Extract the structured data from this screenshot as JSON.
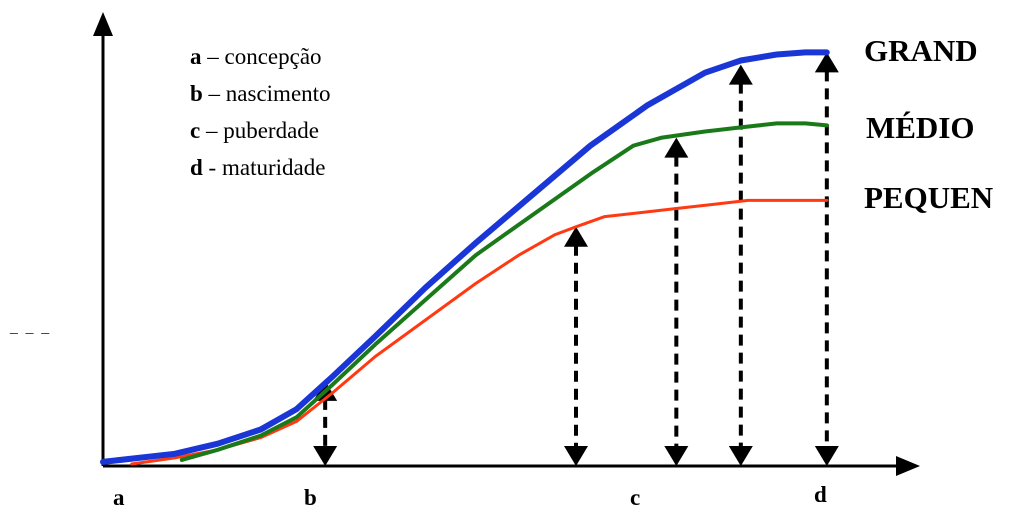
{
  "chart_data": {
    "type": "line",
    "title": "",
    "xlabel": "",
    "ylabel": "",
    "x_ticks": [
      {
        "label": "a",
        "x": 0.05
      },
      {
        "label": "b",
        "x": 3.1
      },
      {
        "label": "c",
        "x": 8.0
      },
      {
        "label": "d",
        "x": 10.0
      }
    ],
    "xlim": [
      0,
      11.4
    ],
    "ylim": [
      0,
      1.1
    ],
    "legend": [
      {
        "key": "a",
        "sep": "–",
        "text": "concepção"
      },
      {
        "key": "b",
        "sep": "–",
        "text": "nascimento"
      },
      {
        "key": "c",
        "sep": "–",
        "text": "puberdade"
      },
      {
        "key": "d",
        "sep": "-",
        "text": "maturidade"
      }
    ],
    "series": [
      {
        "name": "GRAND",
        "color": "#1a36d6",
        "x": [
          0,
          1,
          1.6,
          2.2,
          2.7,
          3.2,
          3.8,
          4.5,
          5.2,
          6.0,
          6.8,
          7.6,
          8.4,
          8.9,
          9.4,
          9.8,
          10.1
        ],
        "y": [
          0.01,
          0.03,
          0.055,
          0.09,
          0.14,
          0.22,
          0.32,
          0.44,
          0.55,
          0.67,
          0.79,
          0.89,
          0.97,
          1.0,
          1.015,
          1.02,
          1.02
        ]
      },
      {
        "name": "MÉDIO",
        "color": "#1a7a1a",
        "x": [
          1.1,
          1.6,
          2.2,
          2.7,
          3.2,
          3.8,
          4.5,
          5.2,
          6.0,
          6.8,
          7.4,
          7.8,
          8.4,
          8.9,
          9.4,
          9.8,
          10.1
        ],
        "y": [
          0.015,
          0.04,
          0.075,
          0.12,
          0.2,
          0.3,
          0.41,
          0.52,
          0.62,
          0.72,
          0.79,
          0.81,
          0.825,
          0.835,
          0.845,
          0.845,
          0.84
        ]
      },
      {
        "name": "PEQUEN",
        "color": "#ff3a12",
        "x": [
          0.4,
          1,
          1.6,
          2.2,
          2.7,
          3.2,
          3.8,
          4.5,
          5.2,
          5.8,
          6.3,
          6.6,
          7.0,
          7.5,
          8.0,
          8.5,
          9.0,
          9.4,
          10.1
        ],
        "y": [
          0.005,
          0.02,
          0.04,
          0.07,
          0.11,
          0.18,
          0.27,
          0.36,
          0.45,
          0.52,
          0.57,
          0.59,
          0.615,
          0.625,
          0.635,
          0.645,
          0.655,
          0.655,
          0.655
        ]
      }
    ],
    "arrows": [
      {
        "x": 3.1,
        "y_top": 0.21
      },
      {
        "x": 6.6,
        "y_top": 0.59
      },
      {
        "x": 8.0,
        "y_top": 0.81
      },
      {
        "x": 8.9,
        "y_top": 0.99
      },
      {
        "x": 10.1,
        "y_top": 1.02
      }
    ],
    "grid": false
  },
  "side_mark": "_ _ _"
}
